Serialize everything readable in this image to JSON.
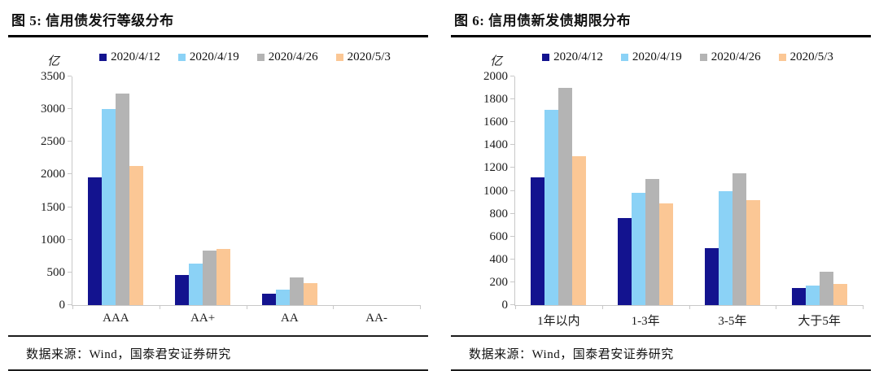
{
  "chart_data": [
    {
      "type": "bar",
      "title": "图 5:  信用债发行等级分布",
      "unit_label": "亿",
      "categories": [
        "AAA",
        "AA+",
        "AA",
        "AA-"
      ],
      "series": [
        {
          "name": "2020/4/12",
          "color": "#13138F",
          "values": [
            1950,
            460,
            180,
            0
          ]
        },
        {
          "name": "2020/4/19",
          "color": "#8BD2F6",
          "values": [
            3000,
            640,
            240,
            0
          ]
        },
        {
          "name": "2020/4/26",
          "color": "#B4B4B4",
          "values": [
            3240,
            840,
            420,
            0
          ]
        },
        {
          "name": "2020/5/3",
          "color": "#FBC795",
          "values": [
            2130,
            860,
            340,
            0
          ]
        }
      ],
      "ylim": [
        0,
        3500
      ],
      "ytick_step": 500,
      "legend_position": "top",
      "grid": false,
      "source": "数据来源：Wind，国泰君安证券研究"
    },
    {
      "type": "bar",
      "title": "图 6:  信用债新发债期限分布",
      "unit_label": "亿",
      "categories": [
        "1年以内",
        "1-3年",
        "3-5年",
        "大于5年"
      ],
      "series": [
        {
          "name": "2020/4/12",
          "color": "#13138F",
          "values": [
            1120,
            760,
            500,
            150
          ]
        },
        {
          "name": "2020/4/19",
          "color": "#8BD2F6",
          "values": [
            1710,
            980,
            1000,
            170
          ]
        },
        {
          "name": "2020/4/26",
          "color": "#B4B4B4",
          "values": [
            1900,
            1100,
            1150,
            290
          ]
        },
        {
          "name": "2020/5/3",
          "color": "#FBC795",
          "values": [
            1300,
            890,
            920,
            185
          ]
        }
      ],
      "ylim": [
        0,
        2000
      ],
      "ytick_step": 200,
      "legend_position": "top",
      "grid": false,
      "source": "数据来源：Wind，国泰君安证券研究"
    }
  ]
}
